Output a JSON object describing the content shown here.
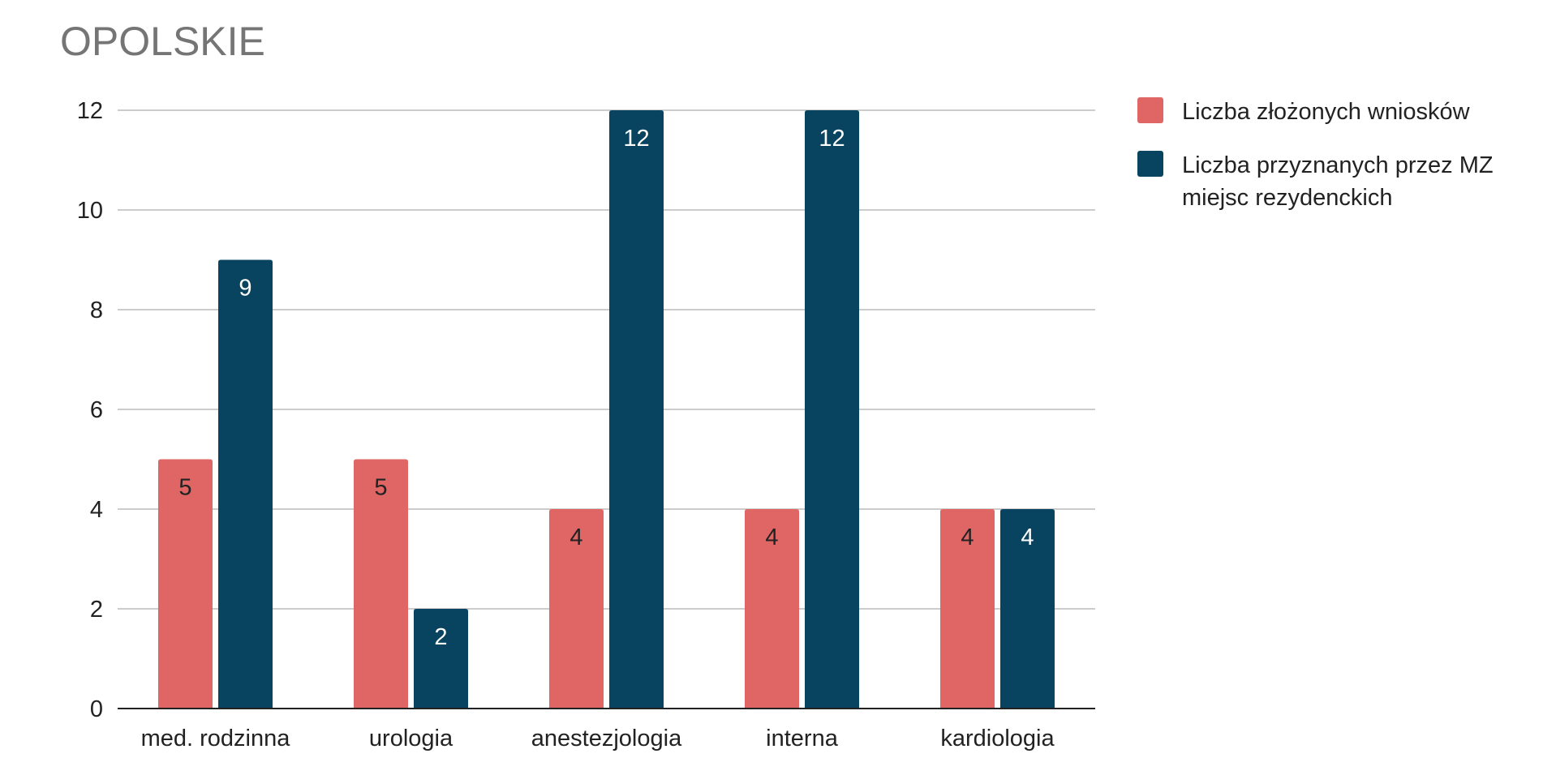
{
  "chart_data": {
    "type": "bar",
    "title": "OPOLSKIE",
    "xlabel": "",
    "ylabel": "",
    "categories": [
      "med. rodzinna",
      "urologia",
      "anestezjologia",
      "interna",
      "kardiologia"
    ],
    "series": [
      {
        "name": "Liczba złożonych wniosków",
        "values": [
          5,
          5,
          4,
          4,
          4
        ],
        "color": "#e06666",
        "label_color": "#222222"
      },
      {
        "name": "Liczba przyznanych przez MZ miejsc rezydenckich",
        "name_lines": [
          "Liczba przyznanych przez MZ",
          "miejsc rezydenckich"
        ],
        "values": [
          9,
          2,
          12,
          12,
          4
        ],
        "color": "#08445f",
        "label_color": "#ffffff"
      }
    ],
    "ylim": [
      0,
      12
    ],
    "yticks": [
      0,
      2,
      4,
      6,
      8,
      10,
      12
    ],
    "grid": true,
    "gridline_color": "#cccccc",
    "axis_color": "#222222",
    "legend_position": "right",
    "data_labels": true
  }
}
